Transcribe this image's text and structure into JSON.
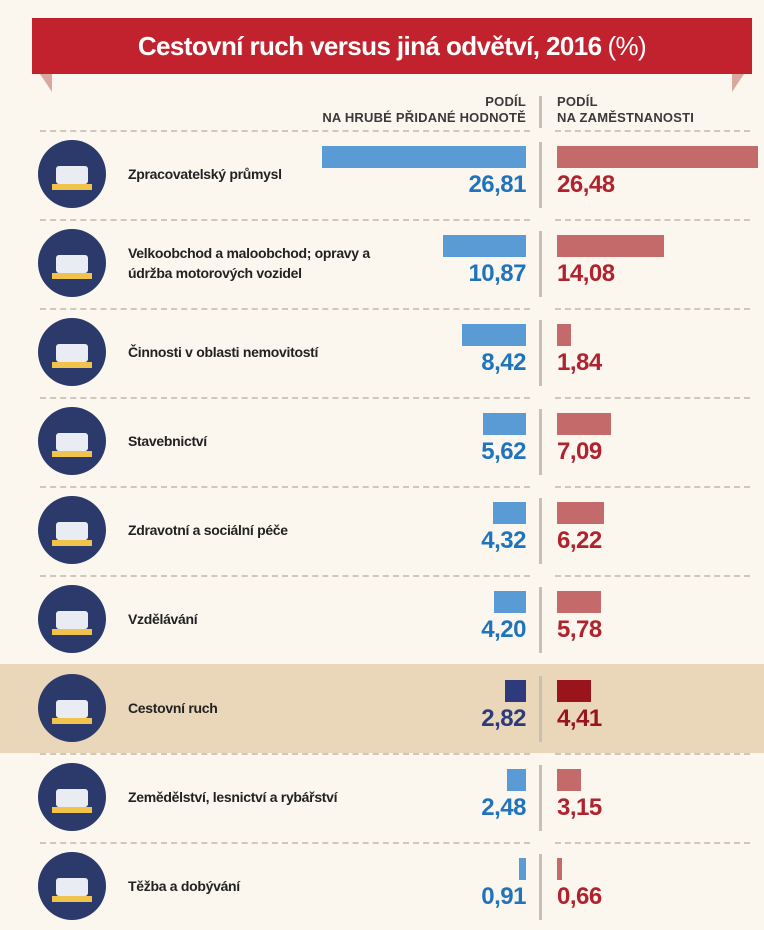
{
  "chart_data": {
    "type": "bar",
    "title": "Cestovní ruch versus jiná odvětví, 2016",
    "title_unit": "(%)",
    "categories": [
      "Zpracovatelský průmysl",
      "Velkoobchod a maloobchod; opravy a údržba motorových vozidel",
      "Činnosti v oblasti nemovitostí",
      "Stavebnictví",
      "Zdravotní a sociální péče",
      "Vzdělávání",
      "Cestovní ruch",
      "Zemědělství, lesnictví a rybářství",
      "Těžba a dobývání"
    ],
    "series": [
      {
        "name": "PODÍL NA HRUBÉ PŘIDANÉ HODNOTĚ",
        "color": "#5b9bd5",
        "label_color": "#1f74bd",
        "highlight_color": "#2d3a7c",
        "values": [
          26.81,
          10.87,
          8.42,
          5.62,
          4.32,
          4.2,
          2.82,
          2.48,
          0.91
        ],
        "value_labels": [
          "26,81",
          "10,87",
          "8,42",
          "5,62",
          "4,32",
          "4,20",
          "2,82",
          "2,48",
          "0,91"
        ]
      },
      {
        "name": "PODÍL NA ZAMĚSTNANOSTI",
        "color": "#c46a6b",
        "label_color": "#b0222d",
        "highlight_color": "#9a151b",
        "values": [
          26.48,
          14.08,
          1.84,
          7.09,
          6.22,
          5.78,
          4.41,
          3.15,
          0.66
        ],
        "value_labels": [
          "26,48",
          "14,08",
          "1,84",
          "7,09",
          "6,22",
          "5,78",
          "4,41",
          "3,15",
          "0,66"
        ]
      }
    ],
    "highlight": 6,
    "highlight_band_color": "#ead7ba"
  }
}
